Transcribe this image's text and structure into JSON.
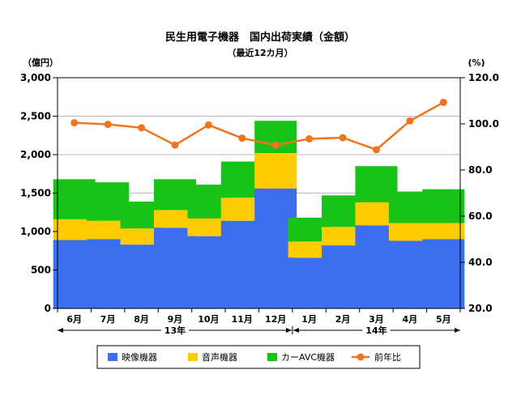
{
  "chart_data": {
    "type": "bar",
    "title": "民生用電子機器　国内出荷実績（金額）",
    "subtitle": "（最近12カ月）",
    "ylabel_left": "（億円）",
    "ylabel_right": "(%)",
    "categories": [
      "6月",
      "7月",
      "8月",
      "9月",
      "10月",
      "11月",
      "12月",
      "1月",
      "2月",
      "3月",
      "4月",
      "5月"
    ],
    "year_groups": [
      {
        "label": "13年",
        "start": 0,
        "end": 6
      },
      {
        "label": "14年",
        "start": 7,
        "end": 11
      }
    ],
    "series": [
      {
        "name": "映像機器",
        "type": "bar",
        "stack": true,
        "color": "#3c6ef0",
        "values": [
          890,
          900,
          830,
          1050,
          940,
          1140,
          1560,
          660,
          820,
          1080,
          880,
          900
        ]
      },
      {
        "name": "音声機器",
        "type": "bar",
        "stack": true,
        "color": "#ffcc00",
        "values": [
          270,
          240,
          210,
          230,
          230,
          300,
          460,
          210,
          240,
          300,
          230,
          210
        ]
      },
      {
        "name": "カーAVC機器",
        "type": "bar",
        "stack": true,
        "color": "#16c316",
        "values": [
          520,
          500,
          350,
          400,
          440,
          470,
          420,
          310,
          410,
          470,
          410,
          440
        ]
      },
      {
        "name": "前年比",
        "type": "line",
        "axis": "right",
        "color": "#f0731e",
        "values": [
          100.5,
          99.8,
          98.3,
          90.8,
          99.5,
          93.8,
          90.8,
          93.5,
          94.0,
          88.8,
          101.3,
          109.3
        ]
      }
    ],
    "y_left": {
      "min": 0,
      "max": 3000,
      "step": 500,
      "tick_labels": [
        "0",
        "500",
        "1,000",
        "1,500",
        "2,000",
        "2,500",
        "3,000"
      ]
    },
    "y_right": {
      "min": 20,
      "max": 120,
      "step": 20,
      "tick_labels": [
        "20.0",
        "40.0",
        "60.0",
        "80.0",
        "100.0",
        "120.0"
      ]
    },
    "grid": true,
    "legend_position": "bottom"
  }
}
